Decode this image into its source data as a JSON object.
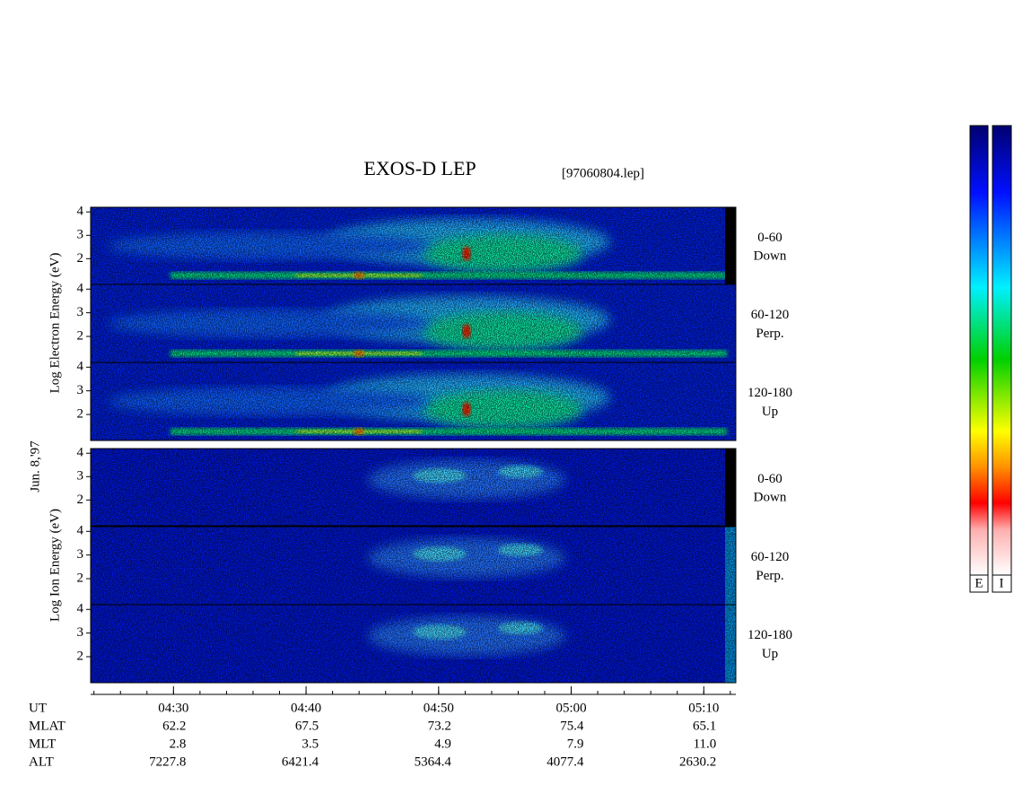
{
  "chart_data": {
    "type": "spectrogram",
    "title": "EXOS-D LEP",
    "file": "[97060804.lep]",
    "date": "Jun. 8,'97",
    "groups": [
      {
        "ylabel": "Log Electron Energy (eV)",
        "panels": [
          {
            "angle": "0-60",
            "direction": "Down"
          },
          {
            "angle": "60-120",
            "direction": "Perp."
          },
          {
            "angle": "120-180",
            "direction": "Up"
          }
        ]
      },
      {
        "ylabel": "Log Ion Energy (eV)",
        "panels": [
          {
            "angle": "0-60",
            "direction": "Down"
          },
          {
            "angle": "60-120",
            "direction": "Perp."
          },
          {
            "angle": "120-180",
            "direction": "Up"
          }
        ]
      }
    ],
    "ylim": [
      0.9,
      4.2
    ],
    "yticks": [
      2,
      3,
      4
    ],
    "xlim": [
      "04:23:45",
      "05:12:25"
    ],
    "xticks": [
      "04:30",
      "04:40",
      "04:50",
      "05:00",
      "05:10"
    ],
    "table": {
      "rows": [
        {
          "label": "UT"
        },
        {
          "label": "MLAT",
          "values": [
            "62.2",
            "67.5",
            "73.2",
            "75.4",
            "65.1"
          ]
        },
        {
          "label": "MLT",
          "values": [
            "2.8",
            "3.5",
            "4.9",
            "7.9",
            "11.0"
          ]
        },
        {
          "label": "ALT",
          "values": [
            "7227.8",
            "6421.4",
            "5364.4",
            "4077.4",
            "2630.2"
          ]
        }
      ]
    },
    "colorbar": {
      "labels": [
        "E",
        "I"
      ]
    }
  }
}
